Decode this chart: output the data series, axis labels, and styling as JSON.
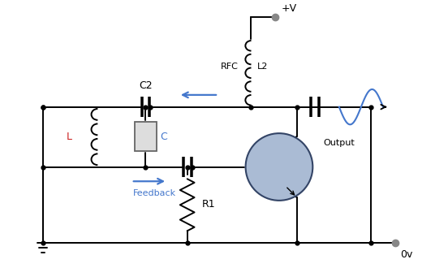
{
  "bg_color": "#ffffff",
  "line_color": "#000000",
  "blue_color": "#4477cc",
  "transistor_fill": "#aabbd4",
  "transistor_edge": "#334466",
  "labels": {
    "plus_v": "+V",
    "zero_v": "0v",
    "rfc": "RFC",
    "l2": "L2",
    "c2": "C2",
    "l_label": "L",
    "c_label": "C",
    "r1": "R1",
    "output": "Output",
    "feedback": "Feedback"
  },
  "figsize": [
    5.52,
    3.3
  ],
  "dpi": 100
}
